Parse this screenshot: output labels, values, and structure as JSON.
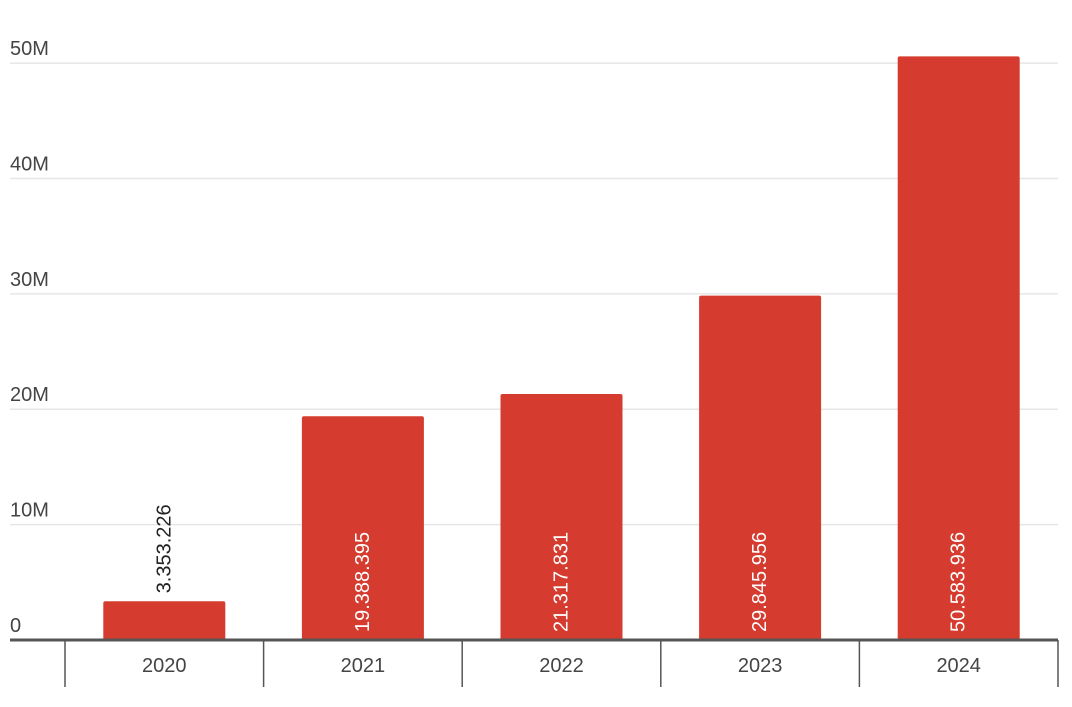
{
  "chart_data": {
    "type": "bar",
    "categories": [
      "2020",
      "2021",
      "2022",
      "2023",
      "2024"
    ],
    "values": [
      3353226,
      19388395,
      21317831,
      29845956,
      50583936
    ],
    "data_labels": [
      "3.353.226",
      "19.388.395",
      "21.317.831",
      "29.845.956",
      "50.583.936"
    ],
    "y_ticks": [
      {
        "value": 0,
        "label": "0"
      },
      {
        "value": 10000000,
        "label": "10M"
      },
      {
        "value": 20000000,
        "label": "20M"
      },
      {
        "value": 30000000,
        "label": "30M"
      },
      {
        "value": 40000000,
        "label": "40M"
      },
      {
        "value": 50000000,
        "label": "50M"
      }
    ],
    "ylim": [
      0,
      52000000
    ],
    "title": "",
    "xlabel": "",
    "ylabel": "",
    "grid": true,
    "legend": "none",
    "colors": {
      "bar": "#d63b2f",
      "grid": "#e6e6e6",
      "axis": "#555555",
      "label_inside": "#ffffff",
      "label_outside": "#222222"
    }
  }
}
